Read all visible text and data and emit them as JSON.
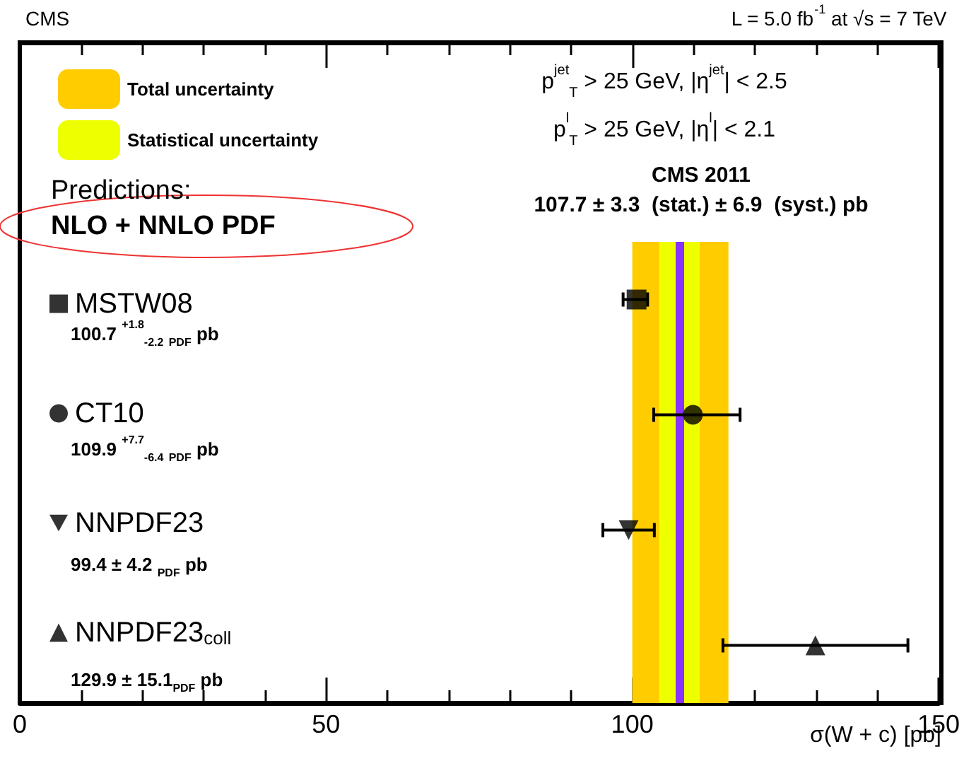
{
  "chart_data": {
    "type": "scatter",
    "title": "CMS",
    "subtitle": "L = 5.0 fb$^{-1}$ at √s = 7 TeV",
    "xlabel": "σ(W + c) [pb]",
    "annotations": [
      "p$^{jet}$$_{T}$ > 25 GeV, |η$^{jet}$| < 2.5",
      "p$^{l}$$_{T}$ > 25 GeV, |η$^{l}$| < 2.1",
      "Predictions:",
      "NLO + NNLO PDF",
      "CMS 2011",
      "107.7 ± 3.3  (stat.) ± 6.9  (syst.) pb",
      "100.7 $^{+1.8}$$_{-2.2}$ $_{PDF}$ pb",
      "109.9 $^{+7.7}$$_{-6.4}$ $_{PDF}$ pb",
      "99.4 ± 4.2 $_{PDF}$ pb",
      "129.9 ± 15.1$_{PDF}$ pb"
    ],
    "categories": [
      null,
      null,
      null,
      null
    ],
    "orientation": "horizontal",
    "series": [
      {
        "name": "MSTW08",
        "color": "#000000",
        "marker": "square",
        "values": [
          100.7,
          null,
          null,
          null
        ],
        "errors": [
          [
            98.5,
            102.5
          ],
          null,
          null,
          null
        ]
      },
      {
        "name": "CT10",
        "color": "#000000",
        "marker": "circle",
        "values": [
          null,
          109.9,
          null,
          null
        ],
        "errors": [
          null,
          [
            103.5,
            117.6
          ],
          null,
          null
        ]
      },
      {
        "name": "NNPDF23",
        "color": "#000000",
        "marker": "triangle-down",
        "values": [
          null,
          null,
          99.4,
          null
        ],
        "errors": [
          null,
          null,
          [
            95.2,
            103.6
          ],
          null
        ]
      },
      {
        "name": "NNPDF23$_{coll}$",
        "color": "#000000",
        "marker": "triangle",
        "values": [
          null,
          null,
          null,
          129.9
        ],
        "errors": [
          null,
          null,
          null,
          [
            114.8,
            145.0
          ]
        ]
      }
    ],
    "bands": [
      {
        "axis": "x",
        "from": 100.0,
        "to": 115.7,
        "label": "Total uncertainty",
        "color": "#ffcc00"
      },
      {
        "axis": "x",
        "from": 104.4,
        "to": 111.0,
        "label": "Statistical uncertainty",
        "color": "#eeff00"
      }
    ],
    "ref_lines": [
      {
        "axis": "x",
        "value": 107.7,
        "label": null,
        "color": "#8833ff"
      }
    ],
    "xlim": [
      0,
      150
    ],
    "xticks": [
      0,
      50,
      100,
      150
    ],
    "legend": "left"
  }
}
